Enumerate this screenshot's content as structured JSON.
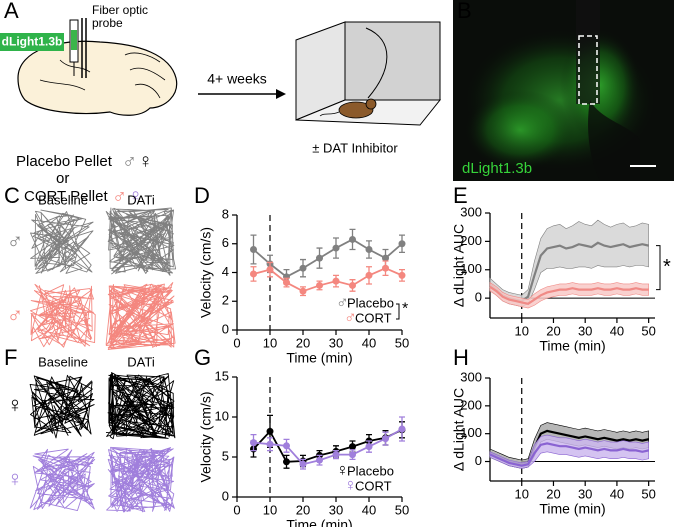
{
  "panel_labels": [
    "A",
    "B",
    "C",
    "D",
    "E",
    "F",
    "G",
    "H"
  ],
  "schematic": {
    "virus": "dLight1.3b",
    "probe": "Fiber optic probe",
    "duration": "4+ weeks",
    "placebo": "Placebo Pellet",
    "or": "or",
    "cort": "CORT Pellet",
    "treatment": "± DAT Inhibitor",
    "placebo_symbols": [
      {
        "text": "♂",
        "color": "#808080"
      },
      {
        "text": "♀",
        "color": "#000000"
      }
    ],
    "cort_symbols": [
      {
        "text": "♂",
        "color": "#f4877f"
      },
      {
        "text": "♀",
        "color": "#a07fdc"
      }
    ]
  },
  "histology": {
    "label": "dLight1.3b"
  },
  "tracks": {
    "columns": [
      "Baseline",
      "DATi"
    ],
    "rows": [
      {
        "symbol": "♂",
        "color": "#808080"
      },
      {
        "symbol": "♂",
        "color": "#f4877f"
      },
      {
        "symbol": "♀",
        "color": "#000000"
      },
      {
        "symbol": "♀",
        "color": "#a07fdc"
      }
    ]
  },
  "chart_data": [
    {
      "type": "line",
      "y_label": "Velocity (cm/s)",
      "x_label": "Time (min)",
      "x": [
        5,
        10,
        15,
        20,
        25,
        30,
        35,
        40,
        45,
        50
      ],
      "xlim": [
        0,
        50
      ],
      "xticks": [
        0,
        10,
        20,
        30,
        40,
        50
      ],
      "ylim": [
        0,
        8
      ],
      "yticks": [
        0,
        2,
        4,
        6,
        8
      ],
      "event_x": 10,
      "annotation": "*",
      "series": [
        {
          "name": "Placebo",
          "symbol": "♂",
          "color": "#808080",
          "values": [
            5.6,
            4.6,
            3.7,
            4.3,
            5.0,
            5.7,
            6.3,
            5.6,
            5.0,
            6.0
          ],
          "errors": [
            1.0,
            0.6,
            0.5,
            0.6,
            0.7,
            0.7,
            0.7,
            0.6,
            0.6,
            0.6
          ]
        },
        {
          "name": "CORT",
          "symbol": "♂",
          "color": "#f4877f",
          "values": [
            3.9,
            4.2,
            3.3,
            2.7,
            3.1,
            3.4,
            3.1,
            3.8,
            4.3,
            3.8
          ],
          "errors": [
            0.5,
            0.5,
            0.3,
            0.3,
            0.3,
            0.4,
            0.4,
            0.6,
            0.5,
            0.4
          ]
        }
      ]
    },
    {
      "type": "line",
      "y_label": "Δ dLight AUC",
      "x_label": "Time (min)",
      "x": [
        0,
        2,
        4,
        6,
        8,
        10,
        12,
        14,
        16,
        18,
        20,
        22,
        24,
        26,
        28,
        30,
        32,
        34,
        36,
        38,
        40,
        42,
        44,
        46,
        48,
        50
      ],
      "xlim": [
        0,
        52
      ],
      "xticks": [
        10,
        20,
        30,
        40,
        50
      ],
      "ylim": [
        -70,
        300
      ],
      "yticks": [
        0,
        100,
        200,
        300
      ],
      "event_x": 10,
      "zero_line": true,
      "annotation": "*",
      "series": [
        {
          "color": "#808080",
          "band_color": "#d4d4d4",
          "values": [
            50,
            30,
            10,
            0,
            -5,
            -10,
            5,
            80,
            150,
            175,
            180,
            185,
            175,
            180,
            190,
            185,
            180,
            195,
            185,
            180,
            185,
            190,
            180,
            185,
            190,
            185
          ],
          "lower": [
            30,
            10,
            -10,
            -20,
            -25,
            -30,
            -20,
            30,
            90,
            105,
            105,
            110,
            105,
            105,
            110,
            110,
            105,
            115,
            110,
            110,
            110,
            115,
            110,
            115,
            115,
            110
          ],
          "upper": [
            70,
            50,
            30,
            20,
            15,
            10,
            30,
            130,
            210,
            245,
            255,
            260,
            245,
            255,
            270,
            260,
            255,
            275,
            260,
            250,
            260,
            265,
            250,
            255,
            265,
            260
          ]
        },
        {
          "color": "#f08a86",
          "band_color": "#f8c9c7",
          "values": [
            40,
            25,
            5,
            -5,
            -10,
            -15,
            -20,
            -5,
            10,
            20,
            25,
            30,
            30,
            35,
            30,
            30,
            30,
            35,
            30,
            30,
            35,
            30,
            30,
            35,
            30,
            30
          ],
          "lower": [
            25,
            10,
            -10,
            -20,
            -25,
            -30,
            -35,
            -25,
            -10,
            0,
            5,
            10,
            10,
            15,
            10,
            10,
            10,
            15,
            10,
            10,
            15,
            10,
            10,
            15,
            10,
            10
          ],
          "upper": [
            55,
            40,
            20,
            10,
            5,
            0,
            -5,
            15,
            30,
            40,
            45,
            50,
            50,
            55,
            50,
            50,
            50,
            55,
            50,
            50,
            55,
            50,
            50,
            55,
            50,
            50
          ]
        }
      ]
    },
    {
      "type": "line",
      "y_label": "Velocity (cm/s)",
      "x_label": "Time (min)",
      "x": [
        5,
        10,
        15,
        20,
        25,
        30,
        35,
        40,
        45,
        50
      ],
      "xlim": [
        0,
        50
      ],
      "xticks": [
        0,
        10,
        20,
        30,
        40,
        50
      ],
      "ylim": [
        0,
        15
      ],
      "yticks": [
        0,
        5,
        10,
        15
      ],
      "event_x": 10,
      "series": [
        {
          "name": "Placebo",
          "symbol": "♀",
          "color": "#000000",
          "values": [
            6.0,
            8.2,
            4.4,
            4.5,
            5.2,
            5.7,
            6.3,
            7.0,
            7.4,
            8.4
          ],
          "errors": [
            1.0,
            2.0,
            0.8,
            0.7,
            0.6,
            0.7,
            0.7,
            0.8,
            0.9,
            1.0
          ]
        },
        {
          "name": "CORT",
          "symbol": "♀",
          "color": "#a07fdc",
          "values": [
            6.8,
            6.6,
            6.4,
            4.1,
            4.6,
            5.3,
            5.3,
            6.3,
            7.3,
            8.5
          ],
          "errors": [
            1.0,
            0.8,
            0.8,
            0.6,
            0.6,
            0.5,
            0.6,
            0.7,
            0.8,
            1.5
          ]
        }
      ]
    },
    {
      "type": "line",
      "y_label": "Δ dLight AUC",
      "x_label": "Time (min)",
      "x": [
        0,
        2,
        4,
        6,
        8,
        10,
        12,
        14,
        16,
        18,
        20,
        22,
        24,
        26,
        28,
        30,
        32,
        34,
        36,
        38,
        40,
        42,
        44,
        46,
        48,
        50
      ],
      "xlim": [
        0,
        52
      ],
      "xticks": [
        10,
        20,
        30,
        40,
        50
      ],
      "ylim": [
        -70,
        300
      ],
      "yticks": [
        0,
        100,
        200,
        300
      ],
      "event_x": 10,
      "zero_line": true,
      "series": [
        {
          "color": "#000000",
          "band_color": "#aaaaaa",
          "values": [
            30,
            20,
            10,
            0,
            -5,
            -10,
            -5,
            50,
            100,
            110,
            105,
            100,
            95,
            90,
            85,
            90,
            85,
            80,
            85,
            80,
            75,
            80,
            75,
            80,
            75,
            80
          ],
          "lower": [
            15,
            5,
            -5,
            -15,
            -20,
            -25,
            -20,
            20,
            70,
            80,
            75,
            70,
            65,
            60,
            55,
            60,
            55,
            50,
            55,
            50,
            45,
            50,
            45,
            50,
            45,
            50
          ],
          "upper": [
            45,
            35,
            25,
            15,
            10,
            5,
            10,
            80,
            130,
            140,
            135,
            130,
            125,
            120,
            115,
            120,
            115,
            110,
            115,
            110,
            105,
            110,
            105,
            110,
            105,
            110
          ]
        },
        {
          "color": "#8a63d2",
          "band_color": "#cdb8ef",
          "values": [
            25,
            15,
            5,
            -5,
            -10,
            -15,
            -10,
            30,
            60,
            65,
            60,
            55,
            55,
            50,
            45,
            50,
            45,
            40,
            45,
            40,
            40,
            45,
            40,
            40,
            35,
            40
          ],
          "lower": [
            15,
            5,
            -5,
            -15,
            -20,
            -25,
            -20,
            0,
            30,
            35,
            30,
            25,
            25,
            20,
            15,
            20,
            15,
            10,
            15,
            10,
            10,
            15,
            10,
            10,
            5,
            10
          ],
          "upper": [
            35,
            25,
            15,
            5,
            0,
            -5,
            0,
            60,
            90,
            95,
            90,
            85,
            85,
            80,
            75,
            80,
            75,
            70,
            75,
            70,
            70,
            75,
            70,
            70,
            65,
            70
          ]
        }
      ]
    }
  ]
}
